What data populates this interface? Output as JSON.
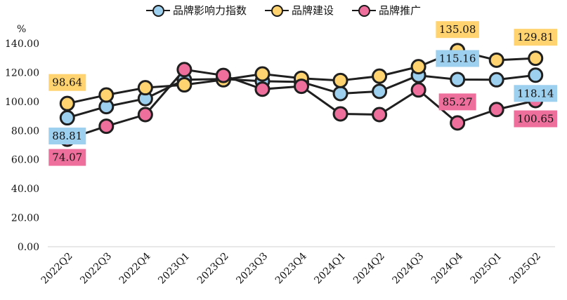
{
  "chart_data": {
    "type": "line",
    "unit_label": "%",
    "categories": [
      "2022Q2",
      "2022Q3",
      "2022Q4",
      "2023Q1",
      "2023Q2",
      "2023Q3",
      "2023Q4",
      "2024Q1",
      "2024Q2",
      "2024Q3",
      "2024Q4",
      "2025Q1",
      "2025Q2"
    ],
    "ylim": [
      0,
      140
    ],
    "yticks": [
      "0.00",
      "20.00",
      "40.00",
      "60.00",
      "80.00",
      "100.00",
      "120.00",
      "140.00"
    ],
    "grid": false,
    "legend_position": "top",
    "series": [
      {
        "name": "品牌影响力指数",
        "color": "#9dd0ef",
        "values": [
          88.81,
          96.5,
          102.0,
          115.0,
          115.5,
          114.0,
          113.5,
          105.5,
          107.0,
          118.0,
          115.16,
          115.0,
          118.14
        ]
      },
      {
        "name": "品牌建设",
        "color": "#ffd470",
        "values": [
          98.64,
          104.5,
          109.5,
          111.5,
          115.0,
          119.0,
          116.0,
          114.5,
          117.5,
          124.0,
          135.08,
          128.5,
          129.81
        ]
      },
      {
        "name": "品牌推广",
        "color": "#ee6f9c",
        "values": [
          74.07,
          83.0,
          91.0,
          122.0,
          118.0,
          108.5,
          110.5,
          91.5,
          91.0,
          108.0,
          85.27,
          94.5,
          100.65
        ]
      }
    ],
    "data_labels": [
      {
        "series": 0,
        "index": 0,
        "text": "88.81",
        "pos": "below"
      },
      {
        "series": 1,
        "index": 0,
        "text": "98.64",
        "pos": "above"
      },
      {
        "series": 2,
        "index": 0,
        "text": "74.07",
        "pos": "below"
      },
      {
        "series": 1,
        "index": 10,
        "text": "135.08",
        "pos": "above"
      },
      {
        "series": 0,
        "index": 10,
        "text": "115.16",
        "pos": "above"
      },
      {
        "series": 2,
        "index": 10,
        "text": "85.27",
        "pos": "above"
      },
      {
        "series": 1,
        "index": 12,
        "text": "129.81",
        "pos": "above"
      },
      {
        "series": 0,
        "index": 12,
        "text": "118.14",
        "pos": "below"
      },
      {
        "series": 2,
        "index": 12,
        "text": "100.65",
        "pos": "below"
      }
    ]
  }
}
